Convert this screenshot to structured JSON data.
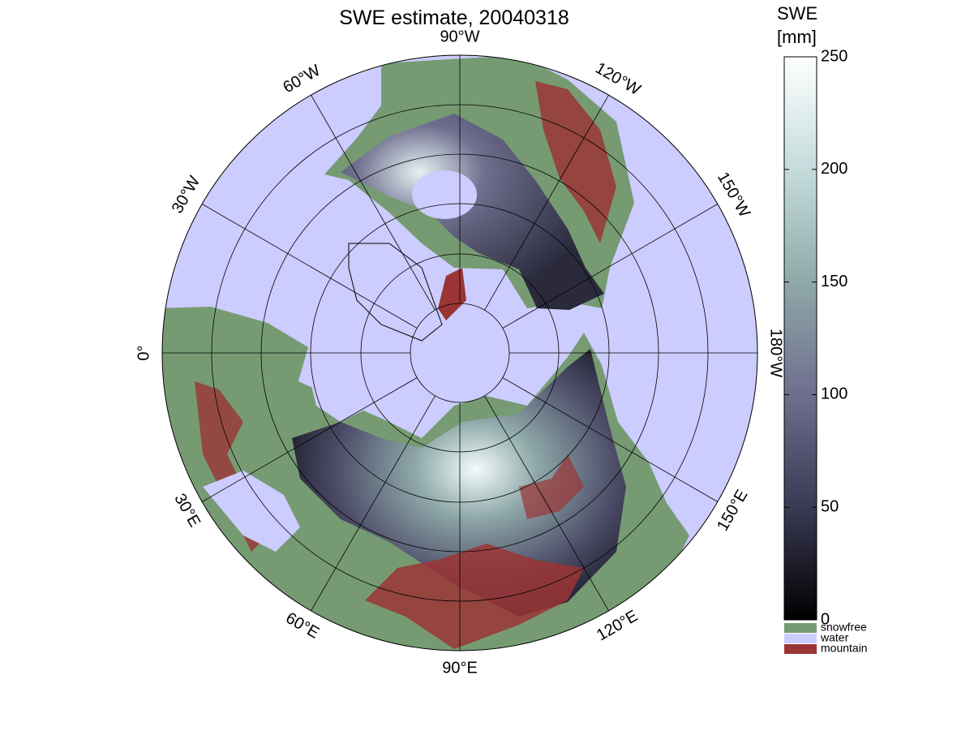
{
  "title": "SWE estimate, 20040318",
  "map": {
    "longitude_labels": [
      "0°",
      "30°W",
      "60°W",
      "90°W",
      "120°W",
      "150°W",
      "180°W",
      "150°E",
      "120°E",
      "90°E",
      "60°E",
      "30°E"
    ],
    "water_color": "#ccccff"
  },
  "colorbar": {
    "label": [
      "SWE",
      "[mm]"
    ],
    "lim": [
      0,
      250
    ],
    "ticks": [
      0,
      50,
      100,
      150,
      200,
      250
    ],
    "colormap": [
      "#000000",
      "#3a3a55",
      "#6e6e8e",
      "#8fa9a9",
      "#c4dcdc",
      "#ffffff"
    ]
  },
  "legend": [
    {
      "name": "snowfree",
      "color": "#769b73"
    },
    {
      "name": "water",
      "color": "#ccccff"
    },
    {
      "name": "mountain",
      "color": "#9b3535"
    }
  ]
}
